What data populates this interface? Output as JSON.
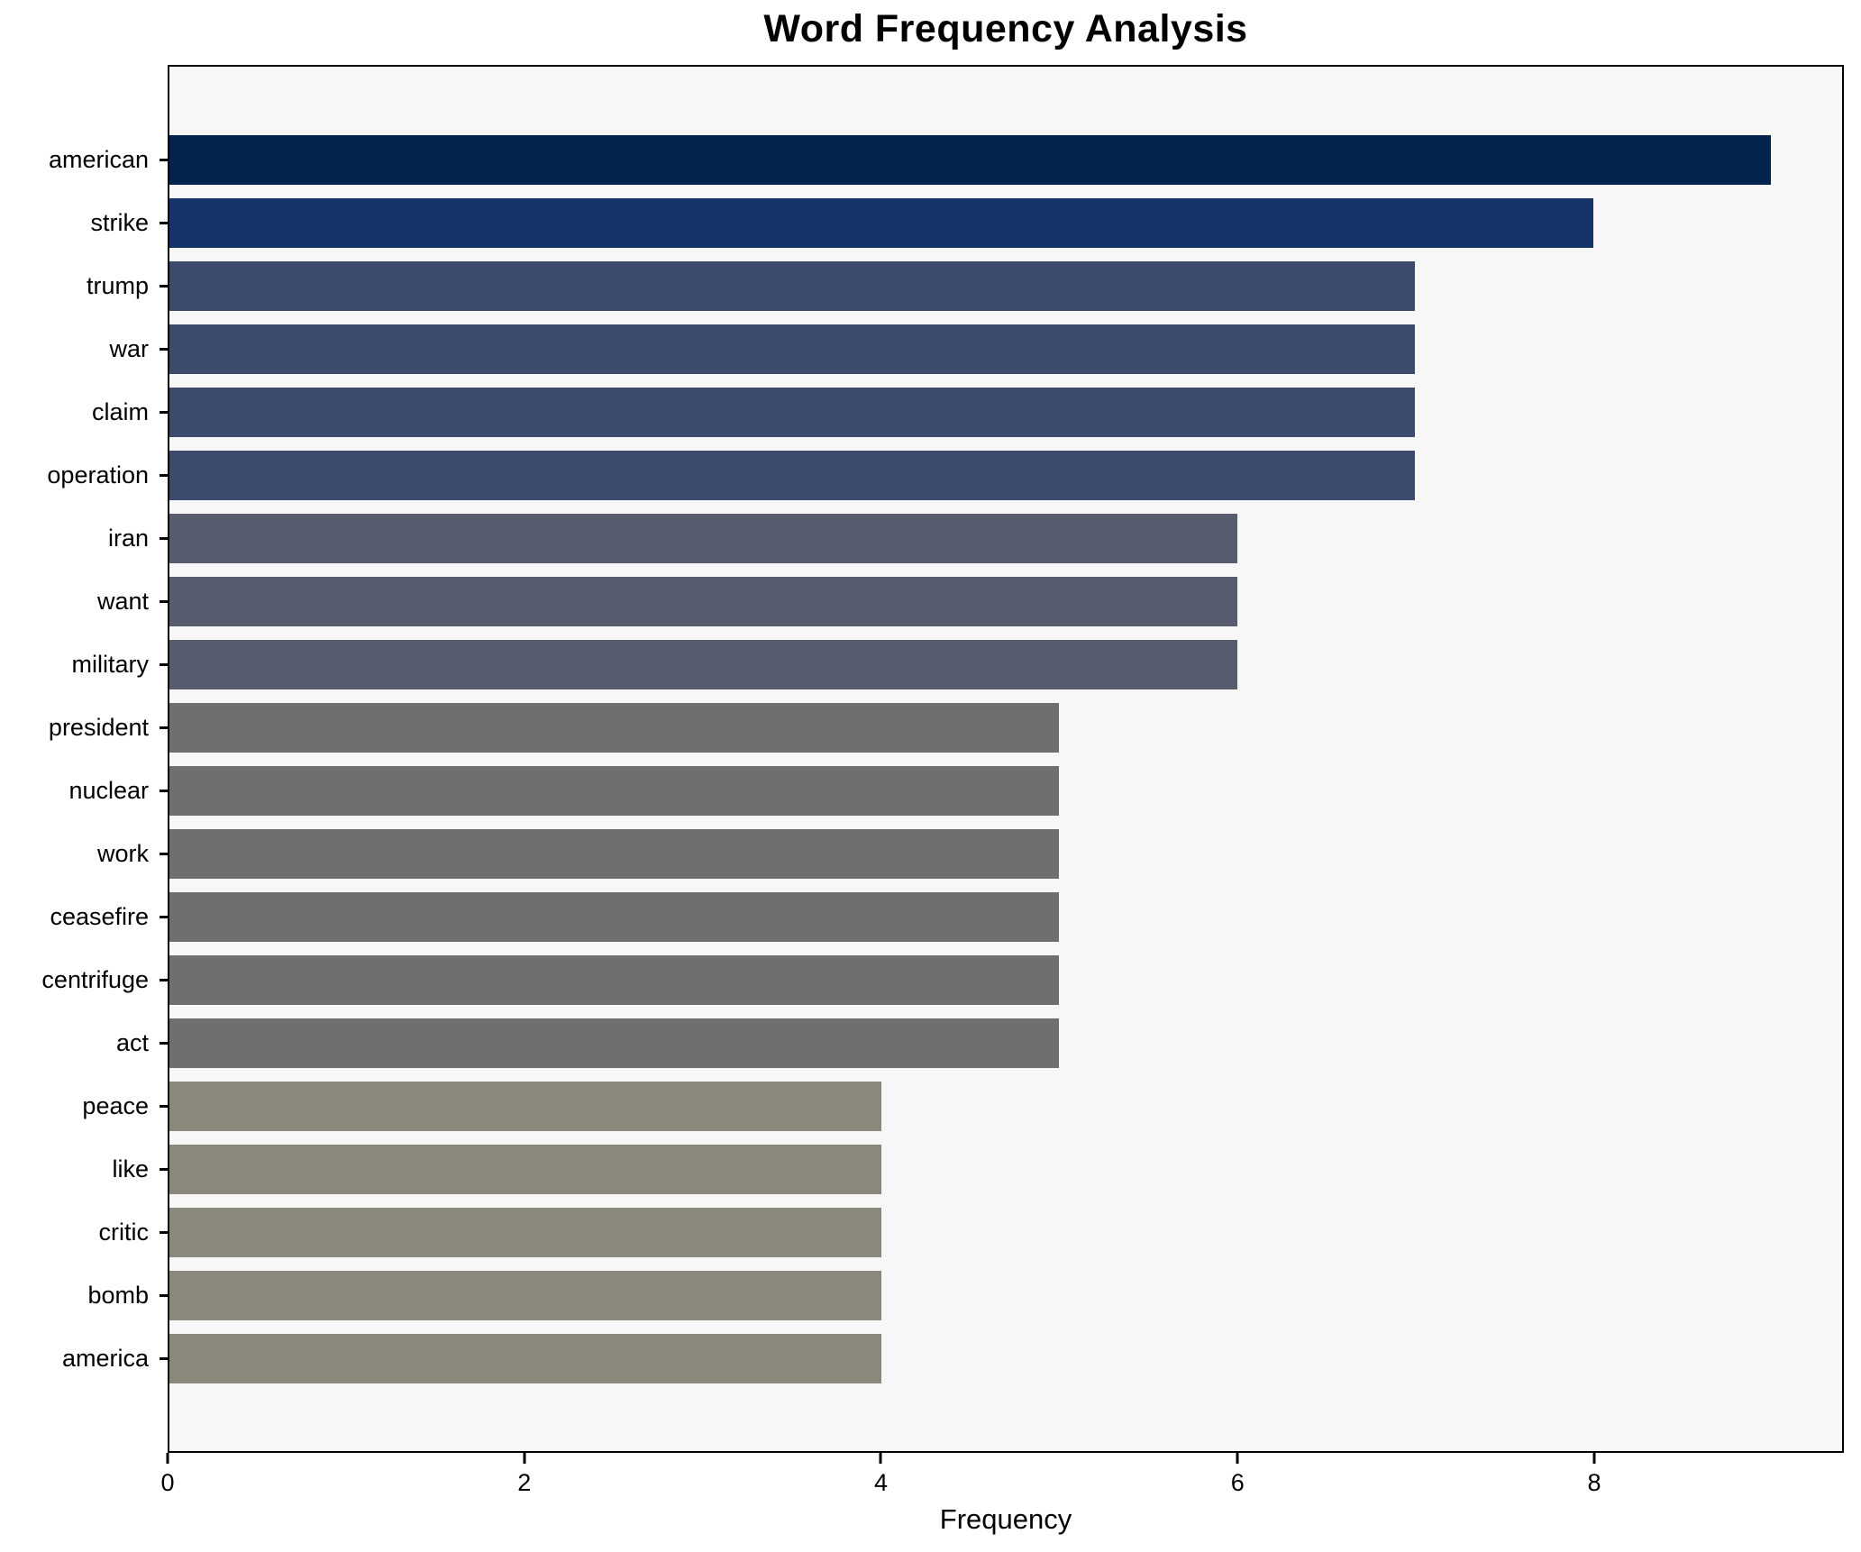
{
  "chart_data": {
    "type": "bar",
    "orientation": "horizontal",
    "title": "Word Frequency Analysis",
    "xlabel": "Frequency",
    "ylabel": "",
    "categories": [
      "american",
      "strike",
      "trump",
      "war",
      "claim",
      "operation",
      "iran",
      "want",
      "military",
      "president",
      "nuclear",
      "work",
      "ceasefire",
      "centrifuge",
      "act",
      "peace",
      "like",
      "critic",
      "bomb",
      "america"
    ],
    "values": [
      9,
      8,
      7,
      7,
      7,
      7,
      6,
      6,
      6,
      5,
      5,
      5,
      5,
      5,
      5,
      4,
      4,
      4,
      4,
      4
    ],
    "colors": [
      "#03224c",
      "#17346a",
      "#3c4a6b",
      "#3c4a6b",
      "#3c4a6b",
      "#3c4a6b",
      "#575d6e",
      "#575d6e",
      "#575d6e",
      "#6e6f71",
      "#6e6f71",
      "#6e6f71",
      "#6e6f71",
      "#6e6f71",
      "#6e6f71",
      "#8a887b",
      "#8a887b",
      "#8a887b",
      "#8a887b",
      "#8a887b"
    ],
    "xlim": [
      0,
      9.4
    ],
    "xticks": [
      0,
      2,
      4,
      6,
      8
    ],
    "grid": false,
    "legend": false,
    "plot_background": "#f7f7f7",
    "page_background": "#ffffff",
    "border_color": "#000000"
  }
}
